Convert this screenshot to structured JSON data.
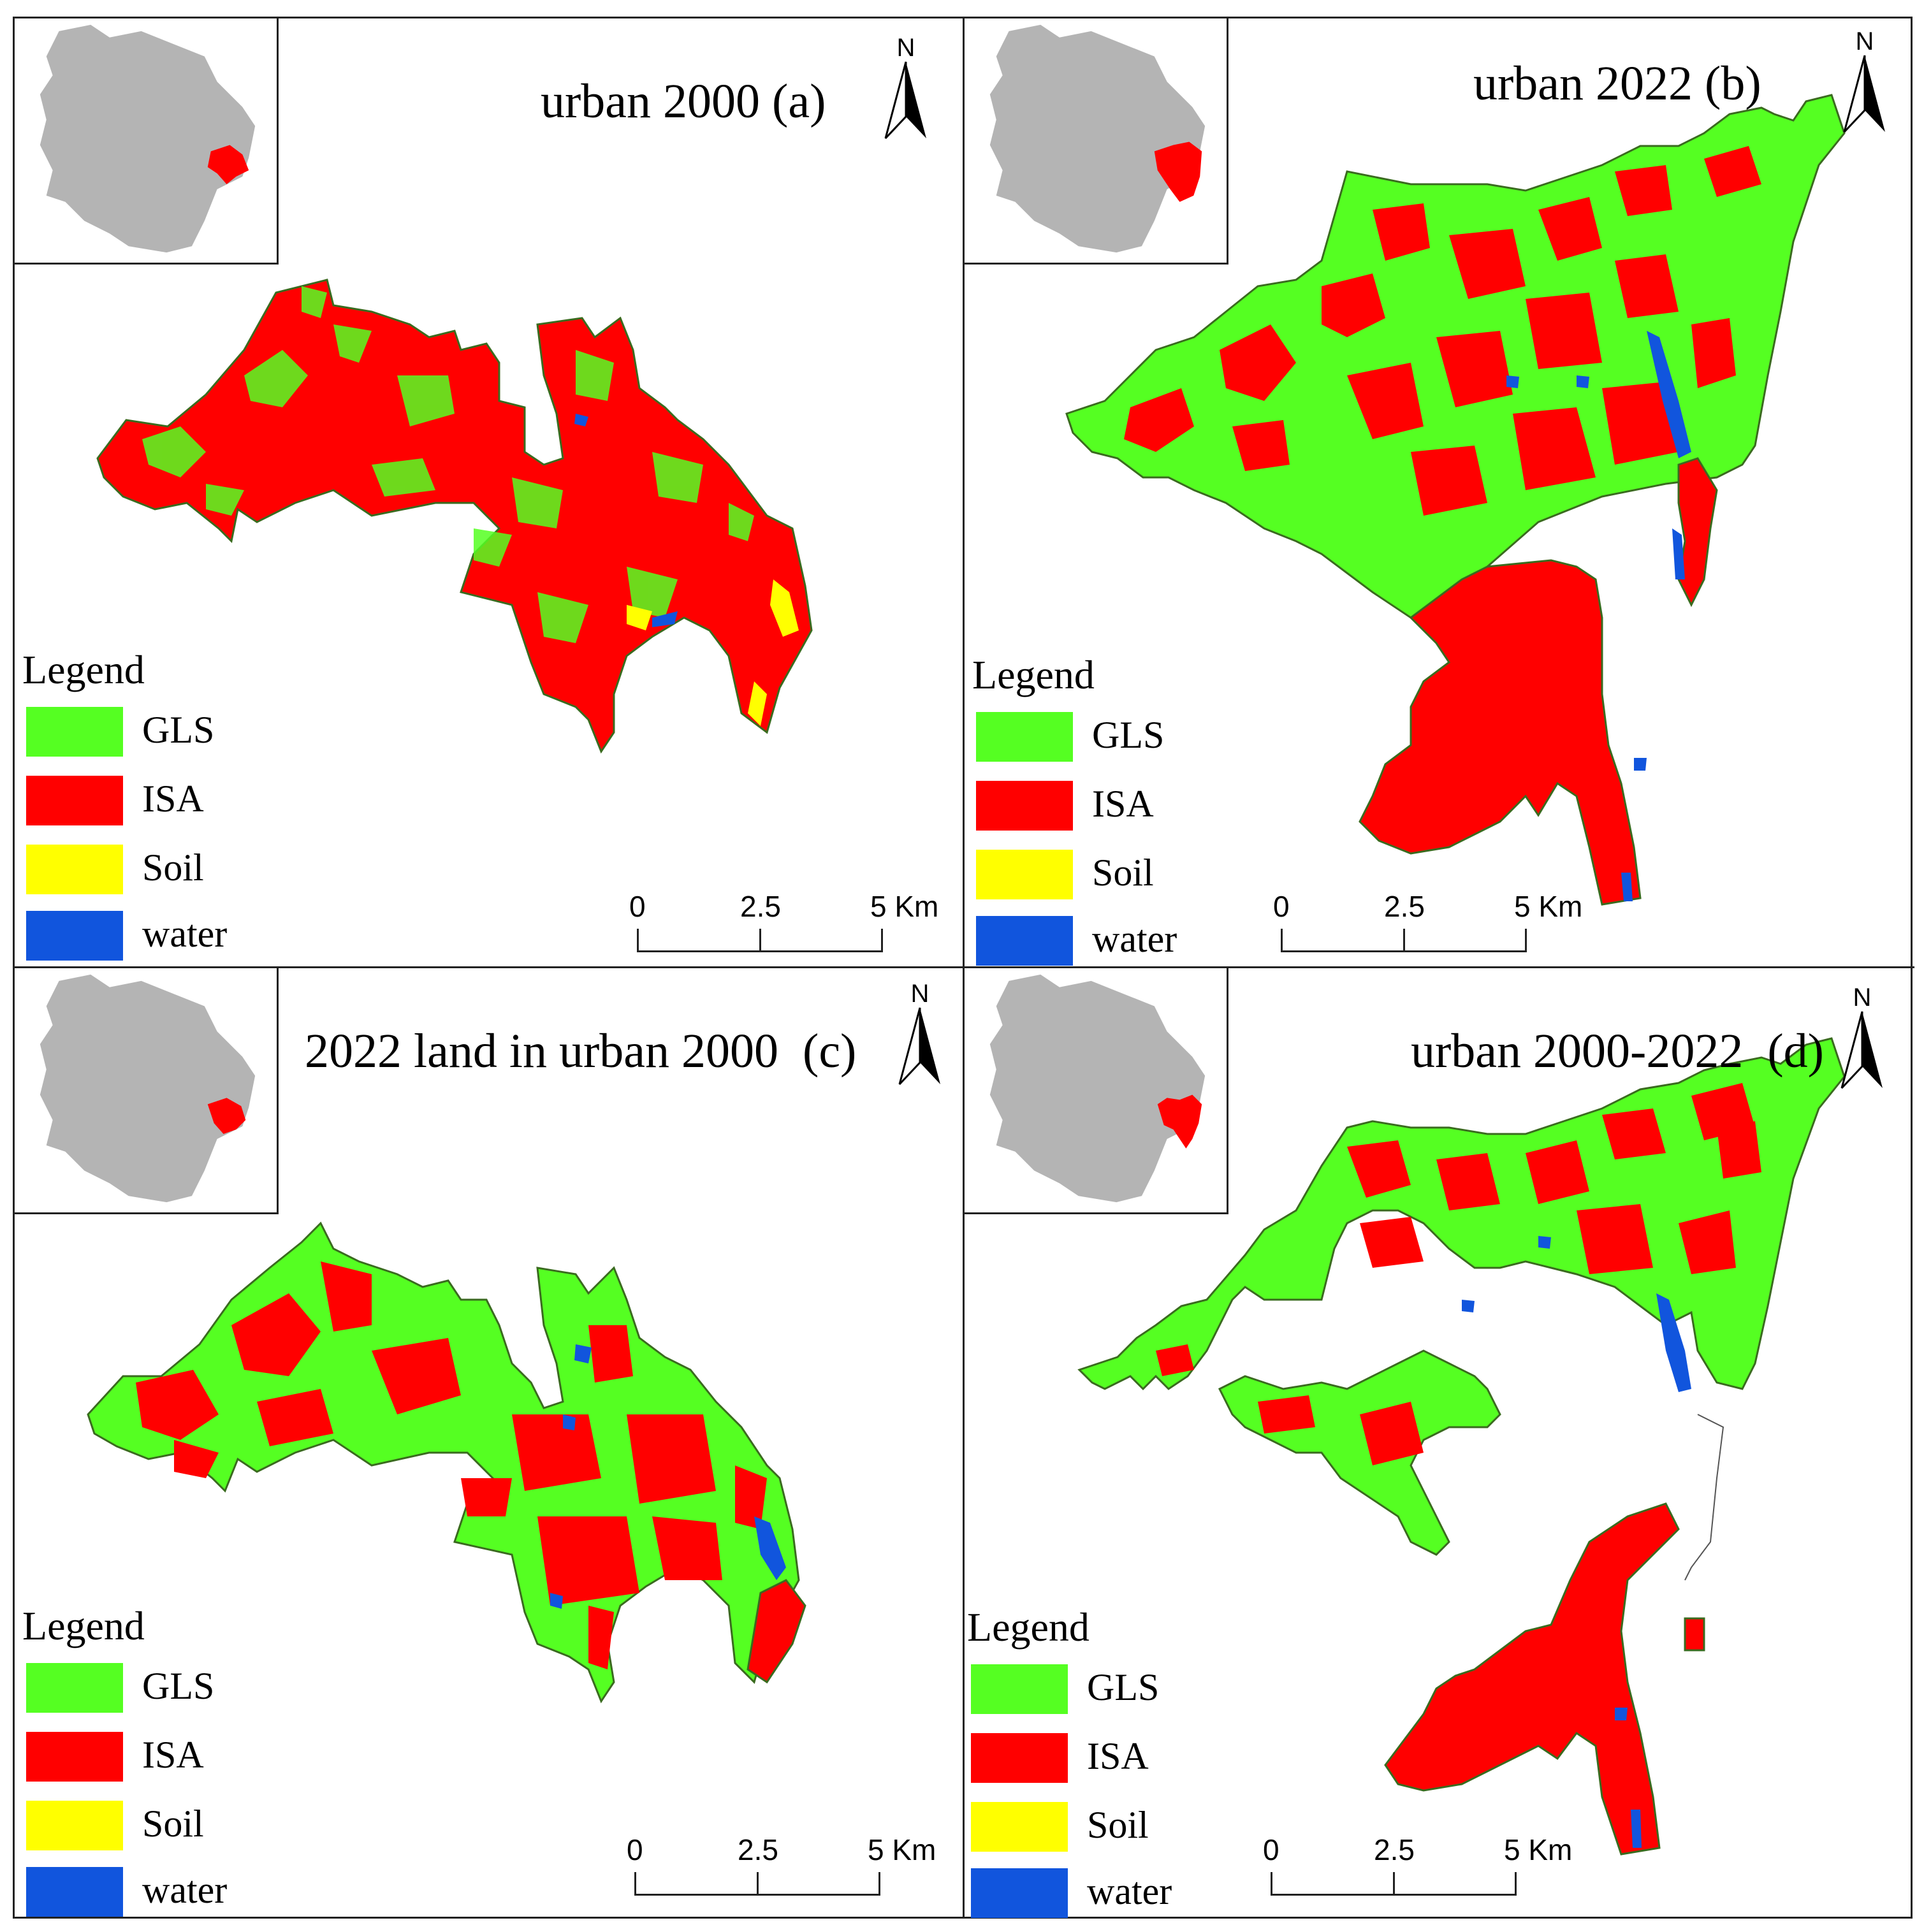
{
  "panels": [
    {
      "id": "a",
      "title": "urban 2000 (a)"
    },
    {
      "id": "b",
      "title": "urban 2022 (b)"
    },
    {
      "id": "c",
      "title": "2022 land in urban 2000  (c)"
    },
    {
      "id": "d",
      "title": "urban 2000-2022  (d)"
    }
  ],
  "north_label": "N",
  "legend": {
    "title": "Legend",
    "items": [
      {
        "label": "GLS",
        "color": "#55ff22"
      },
      {
        "label": "ISA",
        "color": "#ff0000"
      },
      {
        "label": "Soil",
        "color": "#ffff00"
      },
      {
        "label": "water",
        "color": "#1155dd"
      }
    ]
  },
  "scale": {
    "labels": [
      "0",
      "2.5",
      "5 Km"
    ]
  },
  "colors": {
    "region_gray": "#b4b4b4",
    "highlight_red": "#ff0000"
  }
}
